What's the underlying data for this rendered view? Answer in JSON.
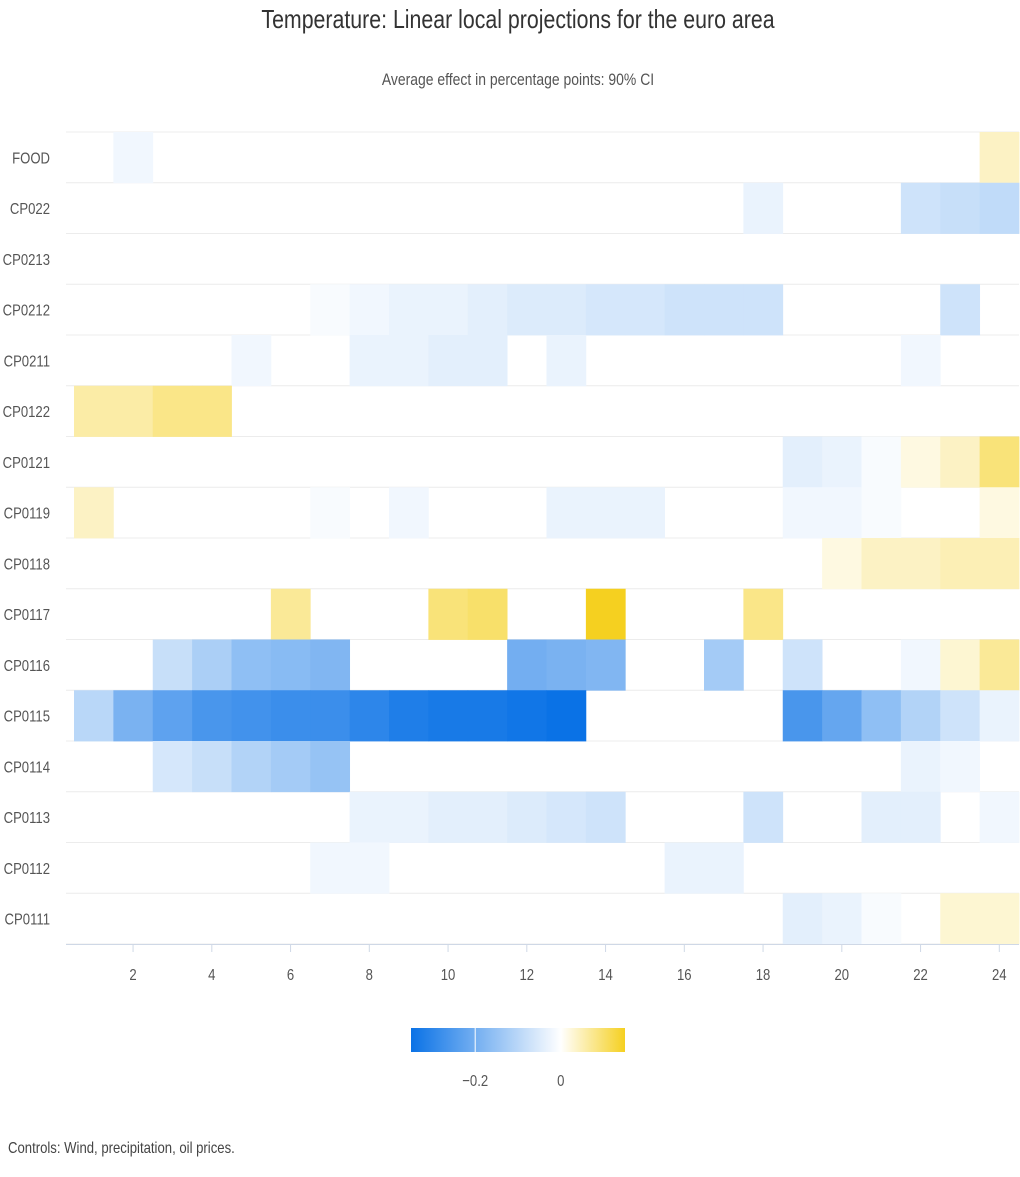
{
  "chart_data": {
    "type": "heatmap",
    "title": "Temperature: Linear local projections for the euro area",
    "subtitle": "Average effect in percentage points: 90% CI",
    "note": "Controls: Wind, precipitation, oil prices.",
    "x": [
      1,
      2,
      3,
      4,
      5,
      6,
      7,
      8,
      9,
      10,
      11,
      12,
      13,
      14,
      15,
      16,
      17,
      18,
      19,
      20,
      21,
      22,
      23,
      24
    ],
    "x_ticks": [
      2,
      4,
      6,
      8,
      10,
      12,
      14,
      16,
      18,
      20,
      22,
      24
    ],
    "y_categories": [
      "FOOD",
      "CP022",
      "CP0213",
      "CP0212",
      "CP0211",
      "CP0122",
      "CP0121",
      "CP0119",
      "CP0118",
      "CP0117",
      "CP0116",
      "CP0115",
      "CP0114",
      "CP0113",
      "CP0112",
      "CP0111"
    ],
    "values": [
      [
        0,
        -0.02,
        0,
        0,
        0,
        0,
        0,
        0,
        0,
        0,
        0,
        0,
        0,
        0,
        0,
        0,
        0,
        0,
        0,
        0,
        0,
        0,
        0,
        0.04
      ],
      [
        0,
        0,
        0,
        0,
        0,
        0,
        0,
        0,
        0,
        0,
        0,
        0,
        0,
        0,
        0,
        0,
        0,
        -0.03,
        0,
        0,
        0,
        -0.07,
        -0.08,
        -0.09
      ],
      [
        0,
        0,
        0,
        0,
        0,
        0,
        0,
        0,
        0,
        0,
        0,
        0,
        0,
        0,
        0,
        0,
        0,
        0,
        0,
        0,
        0,
        0,
        0,
        0
      ],
      [
        0,
        0,
        0,
        0,
        0,
        0,
        -0.01,
        -0.02,
        -0.03,
        -0.03,
        -0.04,
        -0.05,
        -0.05,
        -0.06,
        -0.06,
        -0.07,
        -0.07,
        -0.07,
        0,
        0,
        0,
        0,
        -0.07,
        0
      ],
      [
        0,
        0,
        0,
        0,
        -0.02,
        0,
        0,
        -0.03,
        -0.03,
        -0.04,
        -0.04,
        0,
        -0.03,
        0,
        0,
        0,
        0,
        0,
        0,
        0,
        0,
        -0.02,
        0,
        0
      ],
      [
        0.06,
        0.06,
        0.08,
        0.08,
        0,
        0,
        0,
        0,
        0,
        0,
        0,
        0,
        0,
        0,
        0,
        0,
        0,
        0,
        0,
        0,
        0,
        0,
        0,
        0
      ],
      [
        0,
        0,
        0,
        0,
        0,
        0,
        0,
        0,
        0,
        0,
        0,
        0,
        0,
        0,
        0,
        0,
        0,
        0,
        -0.04,
        -0.03,
        -0.01,
        0.02,
        0.04,
        0.09
      ],
      [
        0.04,
        0,
        0,
        0,
        0,
        0,
        -0.01,
        0,
        -0.02,
        0,
        0,
        0,
        -0.03,
        -0.03,
        -0.03,
        0,
        0,
        0,
        -0.02,
        -0.02,
        -0.01,
        0,
        0,
        0.02
      ],
      [
        0,
        0,
        0,
        0,
        0,
        0,
        0,
        0,
        0,
        0,
        0,
        0,
        0,
        0,
        0,
        0,
        0,
        0,
        0,
        0.02,
        0.04,
        0.04,
        0.05,
        0.05
      ],
      [
        0,
        0,
        0,
        0,
        0,
        0.07,
        0,
        0,
        0,
        0.09,
        0.1,
        0,
        0,
        0.15,
        0,
        0,
        0,
        0.08,
        0,
        0,
        0,
        0,
        0,
        0
      ],
      [
        0,
        0,
        -0.08,
        -0.12,
        -0.16,
        -0.17,
        -0.18,
        0,
        0,
        0,
        0,
        -0.2,
        -0.19,
        -0.18,
        0,
        0,
        -0.13,
        0,
        -0.07,
        0,
        0,
        -0.02,
        0.03,
        0.07
      ],
      [
        -0.1,
        -0.19,
        -0.23,
        -0.26,
        -0.27,
        -0.28,
        -0.28,
        -0.3,
        -0.32,
        -0.33,
        -0.33,
        -0.34,
        -0.35,
        0,
        0,
        0,
        0,
        0,
        -0.26,
        -0.22,
        -0.16,
        -0.11,
        -0.07,
        -0.03
      ],
      [
        0,
        0,
        -0.06,
        -0.08,
        -0.11,
        -0.13,
        -0.15,
        0,
        0,
        0,
        0,
        0,
        0,
        0,
        0,
        0,
        0,
        0,
        0,
        0,
        0,
        -0.03,
        -0.02,
        0
      ],
      [
        0,
        0,
        0,
        0,
        0,
        0,
        0,
        -0.03,
        -0.03,
        -0.04,
        -0.04,
        -0.05,
        -0.06,
        -0.07,
        0,
        0,
        0,
        -0.07,
        0,
        0,
        -0.04,
        -0.04,
        0,
        -0.02
      ],
      [
        0,
        0,
        0,
        0,
        0,
        0,
        -0.02,
        -0.02,
        0,
        0,
        0,
        0,
        0,
        0,
        0,
        -0.03,
        -0.03,
        0,
        0,
        0,
        0,
        0,
        0,
        0
      ],
      [
        0,
        0,
        0,
        0,
        0,
        0,
        0,
        0,
        0,
        0,
        0,
        0,
        0,
        0,
        0,
        0,
        0,
        0,
        -0.04,
        -0.03,
        -0.01,
        0,
        0.03,
        0.03
      ]
    ],
    "color_axis": {
      "min": -0.35,
      "max": 0.15,
      "ticks": [
        -0.2,
        0
      ],
      "tick_labels": [
        "−0.2",
        "0"
      ],
      "colors": {
        "min": "#0a72e6",
        "mid": "#ffffff",
        "max": "#f5d020"
      }
    },
    "legend_position": "bottom-center",
    "grid": false
  }
}
